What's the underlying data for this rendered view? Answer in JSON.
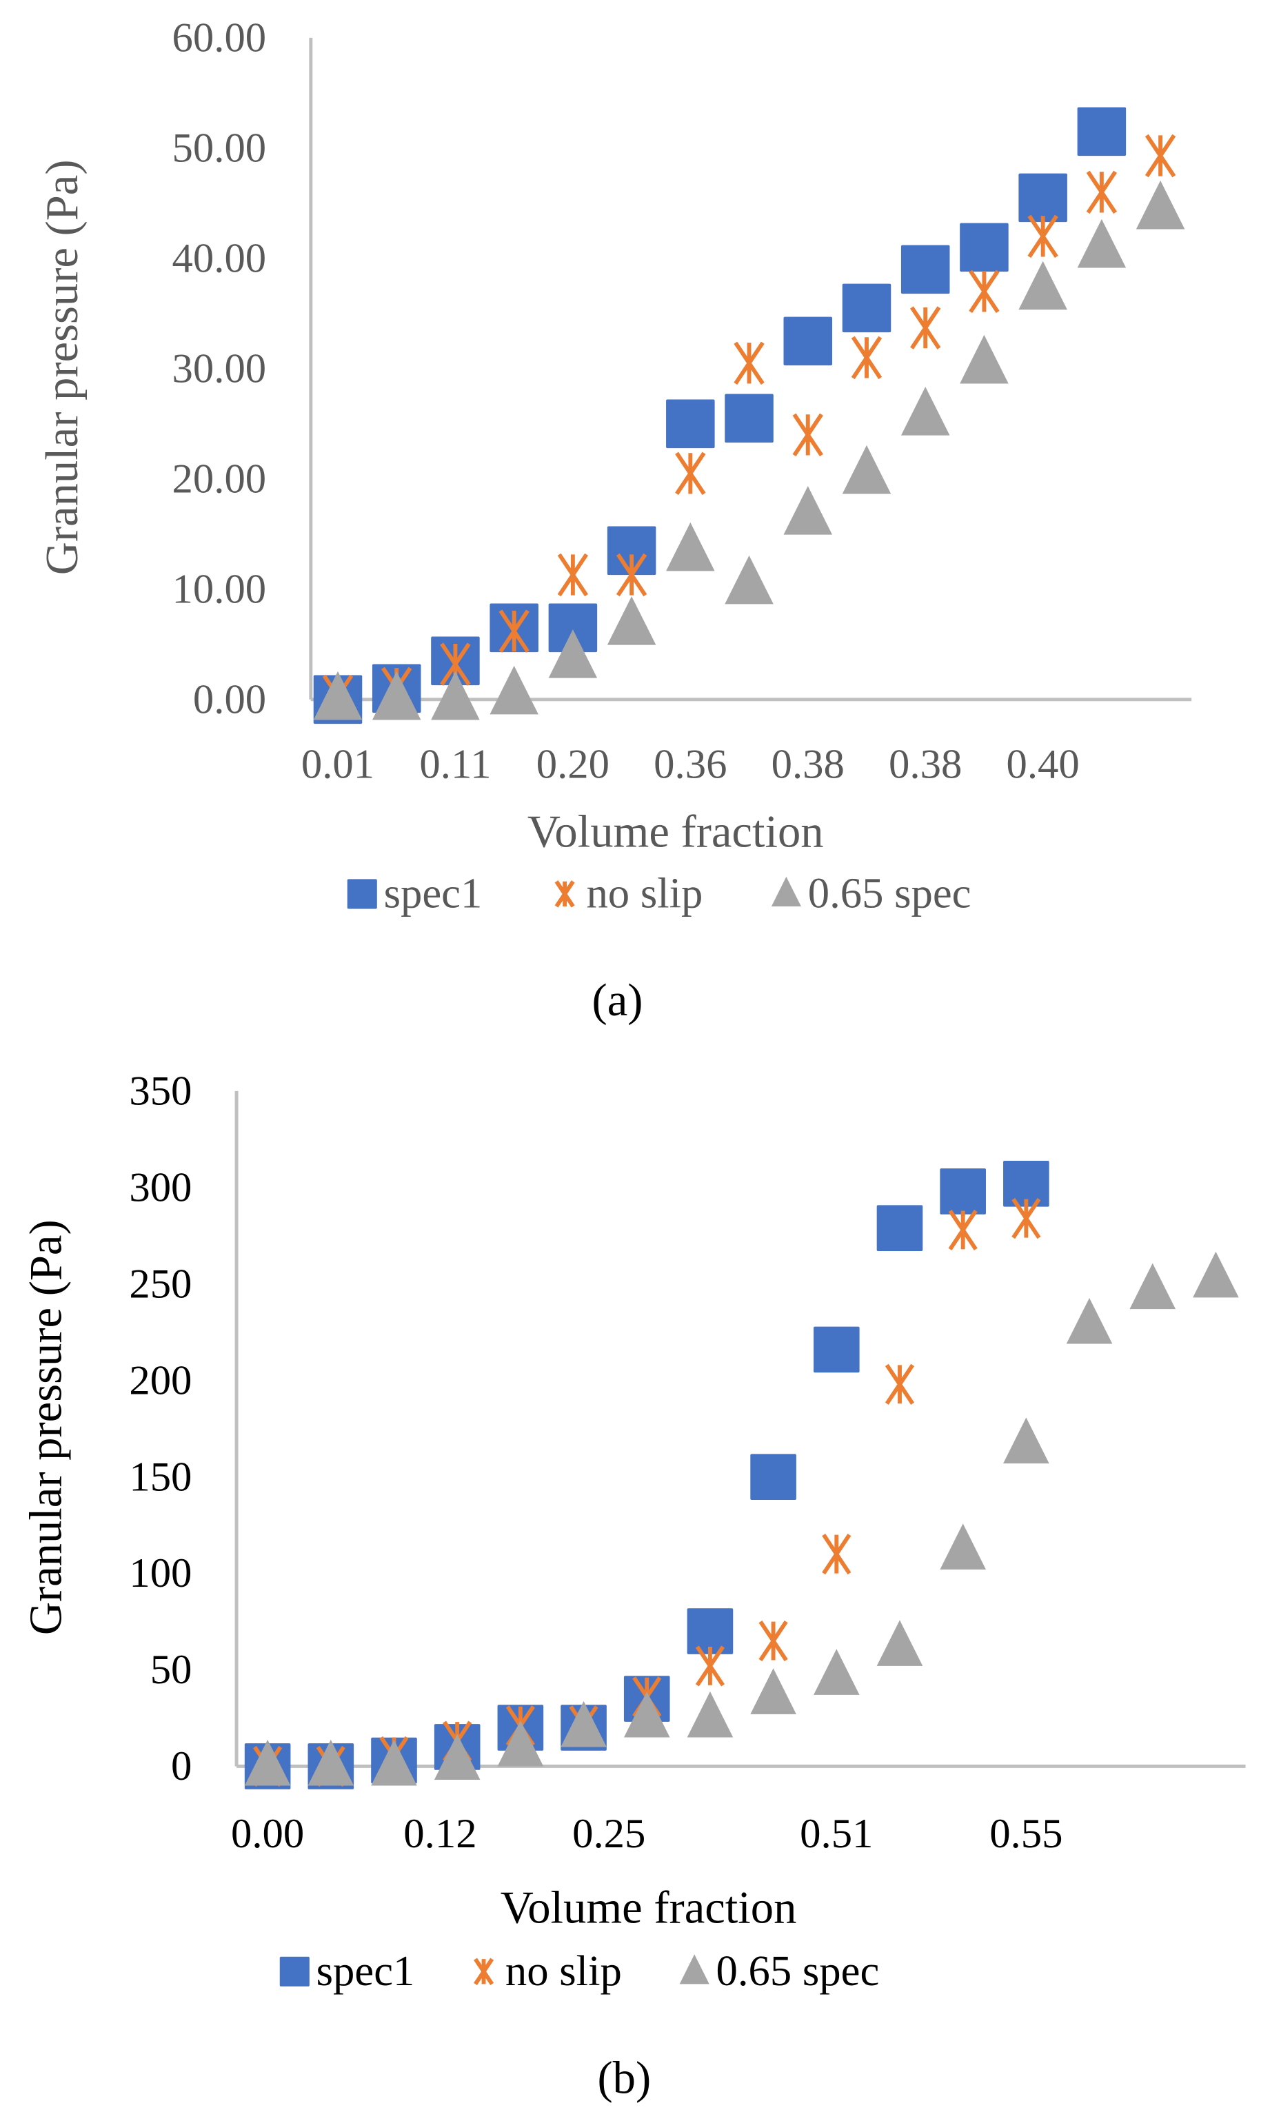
{
  "colors": {
    "spec1": "#4472C4",
    "no_slip": "#ED7D31",
    "spec065": "#A5A5A5",
    "axis": "#BFBFBF"
  },
  "chart_data": [
    {
      "type": "scatter",
      "panel_label": "(a)",
      "panel_letter": "a",
      "xlabel": "Volume fraction",
      "ylabel": "Granular pressure (Pa)",
      "ylim": [
        0,
        60
      ],
      "yticks": [
        "0.00",
        "10.00",
        "20.00",
        "30.00",
        "40.00",
        "50.00",
        "60.00"
      ],
      "ytick_values": [
        0,
        10,
        20,
        30,
        40,
        50,
        60
      ],
      "n_categories": 15,
      "xtick_labels": [
        {
          "index": 0,
          "label": "0.01"
        },
        {
          "index": 2,
          "label": "0.11"
        },
        {
          "index": 4,
          "label": "0.20"
        },
        {
          "index": 6,
          "label": "0.36"
        },
        {
          "index": 8,
          "label": "0.38"
        },
        {
          "index": 10,
          "label": "0.38"
        },
        {
          "index": 12,
          "label": "0.40"
        }
      ],
      "legend_position": "bottom",
      "series": [
        {
          "name": "spec1",
          "marker": "square",
          "values": [
            0,
            1,
            3.5,
            6.5,
            6.5,
            13.5,
            25,
            25.5,
            32.5,
            35.5,
            39,
            41,
            45.5,
            51.5
          ]
        },
        {
          "name": "no slip",
          "marker": "asterisk",
          "values": [
            0.3,
            1,
            3.2,
            6.2,
            11.3,
            11.3,
            20.5,
            30.5,
            24,
            31,
            33.7,
            37,
            42,
            46,
            49.3
          ]
        },
        {
          "name": "0.65 spec",
          "marker": "triangle",
          "values": [
            0,
            0,
            0,
            0.5,
            3.8,
            6.8,
            13.5,
            10.5,
            16.8,
            20.5,
            25.8,
            30.5,
            37.2,
            41,
            44.5
          ]
        }
      ]
    },
    {
      "type": "scatter",
      "panel_label": "(b)",
      "panel_letter": "b",
      "xlabel": "Volume fraction",
      "ylabel": "Granular pressure (Pa)",
      "ylim": [
        0,
        350
      ],
      "yticks": [
        "0",
        "50",
        "100",
        "150",
        "200",
        "250",
        "300",
        "350"
      ],
      "ytick_values": [
        0,
        50,
        100,
        150,
        200,
        250,
        300,
        350
      ],
      "n_categories": 16,
      "xtick_labels": [
        {
          "index": 0,
          "label": "0.00"
        },
        {
          "index": 2.73,
          "label": "0.12"
        },
        {
          "index": 5.4,
          "label": "0.25"
        },
        {
          "index": 9,
          "label": "0.51"
        },
        {
          "index": 12,
          "label": "0.55"
        }
      ],
      "legend_position": "bottom",
      "series": [
        {
          "name": "spec1",
          "marker": "square",
          "values": [
            0,
            0,
            3,
            10,
            20,
            20,
            35,
            70,
            150,
            216,
            279,
            298,
            302
          ]
        },
        {
          "name": "no slip",
          "marker": "asterisk",
          "values": [
            0,
            0,
            5,
            13,
            21,
            21,
            36,
            52,
            65,
            110,
            198,
            278,
            284
          ]
        },
        {
          "name": "0.65 spec",
          "marker": "triangle",
          "values": [
            0,
            0,
            0,
            3,
            10,
            20,
            25,
            25,
            37,
            47,
            62,
            112,
            167,
            229,
            247,
            253
          ]
        }
      ]
    }
  ]
}
